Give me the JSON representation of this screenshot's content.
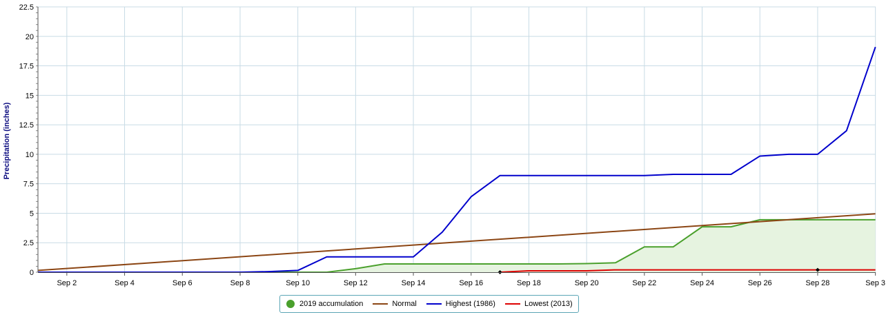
{
  "chart_data": {
    "type": "line",
    "ylabel": "Precipitation (inches)",
    "xlabel": "",
    "title": "",
    "ylim": [
      0,
      22.5
    ],
    "xlim": [
      "Sep 1",
      "Sep 30"
    ],
    "yticks": [
      "0",
      "2.5",
      "5",
      "7.5",
      "10",
      "12.5",
      "15",
      "17.5",
      "20",
      "22.5"
    ],
    "xticks": [
      "Sep 2",
      "Sep 4",
      "Sep 6",
      "Sep 8",
      "Sep 10",
      "Sep 12",
      "Sep 14",
      "Sep 16",
      "Sep 18",
      "Sep 20",
      "Sep 22",
      "Sep 24",
      "Sep 26",
      "Sep 28",
      "Sep 3"
    ],
    "grid": true,
    "legend_placement": "bottom-center",
    "series": [
      {
        "name": "2019 accumulation",
        "color": "#4aa02c",
        "fill": "#e6f3e0",
        "marker": "circle",
        "x": [
          "Sep 1",
          "Sep 2",
          "Sep 3",
          "Sep 4",
          "Sep 5",
          "Sep 6",
          "Sep 7",
          "Sep 8",
          "Sep 9",
          "Sep 10",
          "Sep 11",
          "Sep 12",
          "Sep 13",
          "Sep 14",
          "Sep 15",
          "Sep 16",
          "Sep 17",
          "Sep 18",
          "Sep 19",
          "Sep 20",
          "Sep 21",
          "Sep 22",
          "Sep 23",
          "Sep 24",
          "Sep 25",
          "Sep 26",
          "Sep 27",
          "Sep 28",
          "Sep 29",
          "Sep 30"
        ],
        "y": [
          0,
          0,
          0,
          0,
          0,
          0,
          0,
          0,
          0,
          0,
          0,
          0.3,
          0.7,
          0.7,
          0.7,
          0.7,
          0.7,
          0.7,
          0.7,
          0.73,
          0.8,
          2.15,
          2.15,
          3.85,
          3.85,
          4.45,
          4.45,
          4.45,
          4.45,
          4.45
        ]
      },
      {
        "name": "Normal",
        "color": "#8b4513",
        "x": [
          "Sep 1",
          "Sep 30"
        ],
        "y": [
          0.15,
          4.95
        ]
      },
      {
        "name": "Highest (1986)",
        "color": "#0000cc",
        "x": [
          "Sep 1",
          "Sep 2",
          "Sep 3",
          "Sep 4",
          "Sep 5",
          "Sep 6",
          "Sep 7",
          "Sep 8",
          "Sep 9",
          "Sep 10",
          "Sep 11",
          "Sep 12",
          "Sep 13",
          "Sep 14",
          "Sep 15",
          "Sep 16",
          "Sep 17",
          "Sep 18",
          "Sep 19",
          "Sep 20",
          "Sep 21",
          "Sep 22",
          "Sep 23",
          "Sep 24",
          "Sep 25",
          "Sep 26",
          "Sep 27",
          "Sep 28",
          "Sep 29",
          "Sep 30"
        ],
        "y": [
          0,
          0,
          0,
          0,
          0,
          0,
          0,
          0,
          0.05,
          0.15,
          1.3,
          1.3,
          1.3,
          1.3,
          3.4,
          6.4,
          8.2,
          8.2,
          8.2,
          8.2,
          8.2,
          8.2,
          8.3,
          8.3,
          8.3,
          9.85,
          10.0,
          10.0,
          12.0,
          19.1
        ]
      },
      {
        "name": "Lowest (2013)",
        "color": "#dd0000",
        "x": [
          "Sep 17",
          "Sep 18",
          "Sep 19",
          "Sep 20",
          "Sep 21",
          "Sep 22",
          "Sep 23",
          "Sep 24",
          "Sep 25",
          "Sep 26",
          "Sep 27",
          "Sep 28",
          "Sep 29",
          "Sep 30"
        ],
        "y": [
          0,
          0.12,
          0.12,
          0.12,
          0.2,
          0.2,
          0.2,
          0.2,
          0.2,
          0.2,
          0.2,
          0.2,
          0.2,
          0.2
        ]
      }
    ]
  }
}
